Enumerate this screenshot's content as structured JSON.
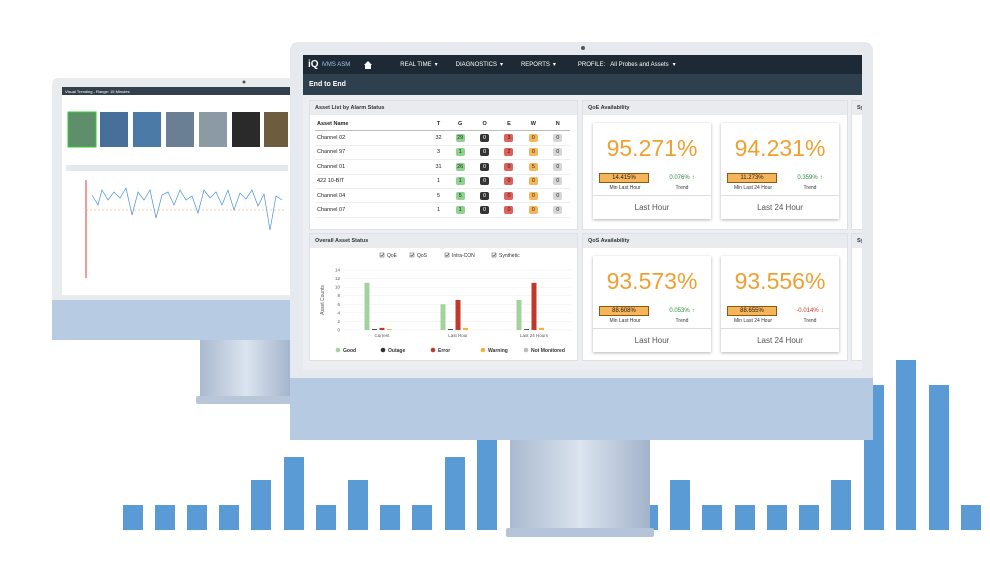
{
  "back_screen": {
    "title": "Visual Trending - Range: 15 Minutes"
  },
  "nav": {
    "logo": "iQ",
    "product": "iVMS ASM",
    "menu": [
      "REAL TIME",
      "DIAGNOSTICS",
      "REPORTS"
    ],
    "profile_label": "PROFILE:",
    "profile_value": "All Probes and Assets"
  },
  "page_title": "End to End",
  "asset_list": {
    "title": "Asset List by Alarm Status",
    "columns": [
      "Asset Name",
      "T",
      "G",
      "O",
      "E",
      "W",
      "N"
    ],
    "rows": [
      [
        "Channel 02",
        32,
        29,
        0,
        3,
        0,
        0
      ],
      [
        "Channel 97",
        3,
        1,
        0,
        2,
        0,
        0
      ],
      [
        "Channel 01",
        31,
        26,
        0,
        0,
        5,
        0
      ],
      [
        "422 10-BIT",
        1,
        1,
        0,
        0,
        0,
        0
      ],
      [
        "Channel 04",
        5,
        5,
        0,
        0,
        0,
        0
      ],
      [
        "Channel 07",
        1,
        1,
        0,
        0,
        0,
        0
      ]
    ]
  },
  "qoe": {
    "title": "QoE Availability",
    "cards": [
      {
        "value": "95.271%",
        "min": "14.415%",
        "min_label": "Min Last Hour",
        "trend": "0.076%",
        "trend_dir": "up",
        "trend_label": "Trend",
        "period": "Last Hour"
      },
      {
        "value": "94.231%",
        "min": "11.273%",
        "min_label": "Min Last 24 Hour",
        "trend": "0.359%",
        "trend_dir": "up",
        "trend_label": "Trend",
        "period": "Last 24 Hour"
      }
    ]
  },
  "qos": {
    "title": "QoS Availability",
    "cards": [
      {
        "value": "93.573%",
        "min": "88.608%",
        "min_label": "Min Last Hour",
        "trend": "0.053%",
        "trend_dir": "up",
        "trend_label": "Trend",
        "period": "Last Hour"
      },
      {
        "value": "93.556%",
        "min": "88.655%",
        "min_label": "Min Last 24 Hour",
        "trend": "-0.014%",
        "trend_dir": "down",
        "trend_label": "Trend",
        "period": "Last 24 Hour"
      }
    ]
  },
  "side_panels": [
    "Sy",
    "Sy"
  ],
  "overall_asset_status": {
    "title": "Overall Asset Status",
    "filters": [
      "QoE",
      "QoS",
      "Intra-CON",
      "Synthetic"
    ],
    "chart_data": {
      "type": "bar",
      "y_label": "Asset Counts",
      "categories": [
        "Current",
        "Last Hour",
        "Last 24 Hours"
      ],
      "series": [
        {
          "name": "Good",
          "color": "#a3d39c",
          "values": [
            11,
            6,
            7
          ]
        },
        {
          "name": "Outage",
          "color": "#333333",
          "values": [
            0.2,
            0.2,
            0.2
          ]
        },
        {
          "name": "Error",
          "color": "#c0392b",
          "values": [
            0.5,
            7,
            11
          ]
        },
        {
          "name": "Warning",
          "color": "#f5b041",
          "values": [
            0.2,
            0.5,
            0.5
          ]
        },
        {
          "name": "Not Monitored",
          "color": "#bbbbbb",
          "values": [
            0,
            0,
            0
          ]
        }
      ],
      "ylim": [
        0,
        14
      ],
      "yticks": [
        0,
        2,
        4,
        6,
        8,
        10,
        12,
        14
      ],
      "grid": true
    }
  }
}
